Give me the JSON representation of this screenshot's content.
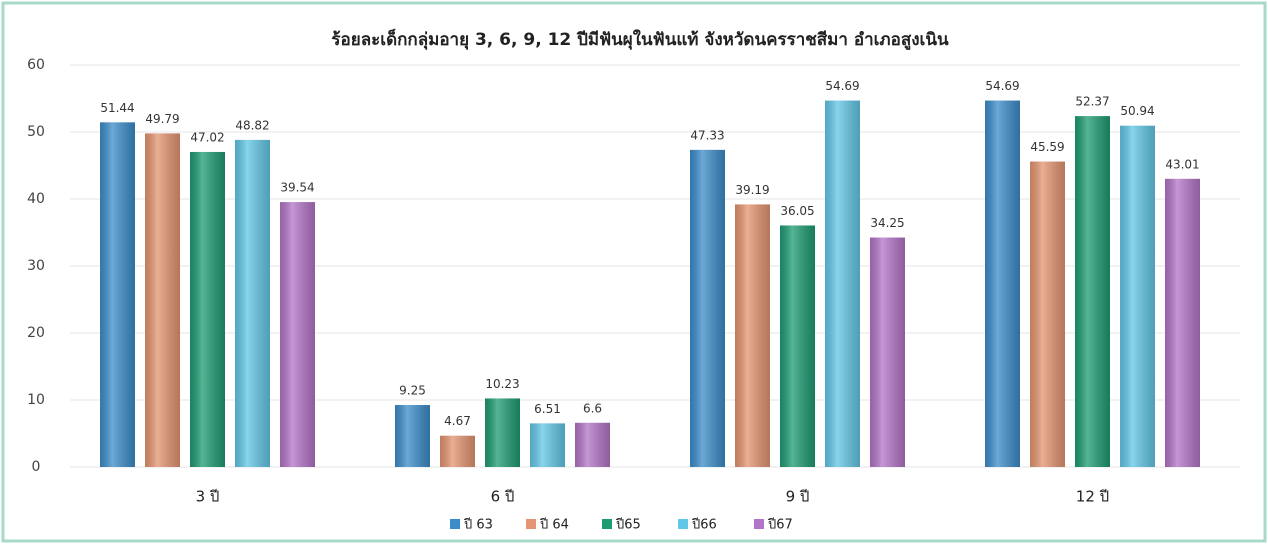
{
  "chart_data": {
    "type": "bar",
    "title": "ร้อยละเด็กกลุ่มอายุ 3, 6, 9, 12 ปีมีฟันผุในฟันแท้  จังหวัดนครราชสีมา อำเภอสูงเนิน",
    "categories": [
      "3 ปี",
      "6 ปี",
      "9 ปี",
      "12 ปี"
    ],
    "series": [
      {
        "name": "ปี 63",
        "color": "#3b8cc9",
        "values": [
          51.44,
          9.25,
          47.33,
          54.69
        ]
      },
      {
        "name": "ปี 64",
        "color": "#e39470",
        "values": [
          49.79,
          4.67,
          39.19,
          45.59
        ]
      },
      {
        "name": "ปี65",
        "color": "#1d9b72",
        "values": [
          47.02,
          10.23,
          36.05,
          52.37
        ]
      },
      {
        "name": "ปี66",
        "color": "#62c6e6",
        "values": [
          48.82,
          6.51,
          54.69,
          50.94
        ]
      },
      {
        "name": "ปี67",
        "color": "#b274c6",
        "values": [
          39.54,
          6.6,
          34.25,
          43.01
        ]
      }
    ],
    "ylim": [
      0,
      60
    ],
    "yticks": [
      0,
      10,
      20,
      30,
      40,
      50,
      60
    ],
    "grid": true,
    "legend": "bottom"
  }
}
